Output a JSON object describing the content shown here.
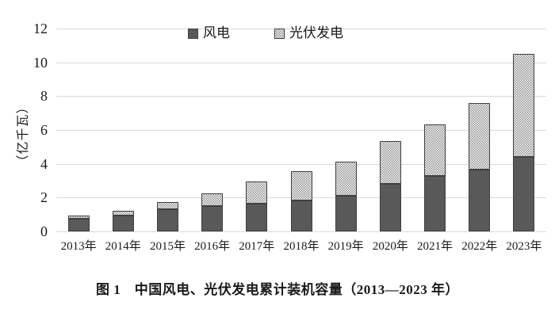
{
  "figure": {
    "caption": "图 1　中国风电、光伏发电累计装机容量（2013—2023 年）"
  },
  "chart_data": {
    "type": "bar",
    "stacked": true,
    "title": "",
    "xlabel": "",
    "ylabel": "（亿千瓦）",
    "categories": [
      "2013年",
      "2014年",
      "2015年",
      "2016年",
      "2017年",
      "2018年",
      "2019年",
      "2020年",
      "2021年",
      "2022年",
      "2023年"
    ],
    "series": [
      {
        "name": "风电",
        "pattern": "solid",
        "color": "#595959",
        "values": [
          0.76,
          0.96,
          1.29,
          1.49,
          1.64,
          1.84,
          2.1,
          2.81,
          3.28,
          3.65,
          4.41
        ]
      },
      {
        "name": "光伏发电",
        "pattern": "checker",
        "color": "#8c8c8c",
        "values": [
          0.19,
          0.28,
          0.43,
          0.77,
          1.3,
          1.74,
          2.04,
          2.53,
          3.06,
          3.93,
          6.09
        ]
      }
    ],
    "yticks": [
      0,
      2,
      4,
      6,
      8,
      10,
      12
    ],
    "ylim": [
      0,
      12
    ],
    "grid": true,
    "legend_position": "top-center"
  },
  "colors": {
    "wind_fill": "#595959",
    "bar_border": "#3f3f3f",
    "checker_dark": "#8c8c8c",
    "checker_light": "#ffffff",
    "gridline": "#d9d9d9",
    "text": "#1a1a1a",
    "background": "#ffffff"
  }
}
